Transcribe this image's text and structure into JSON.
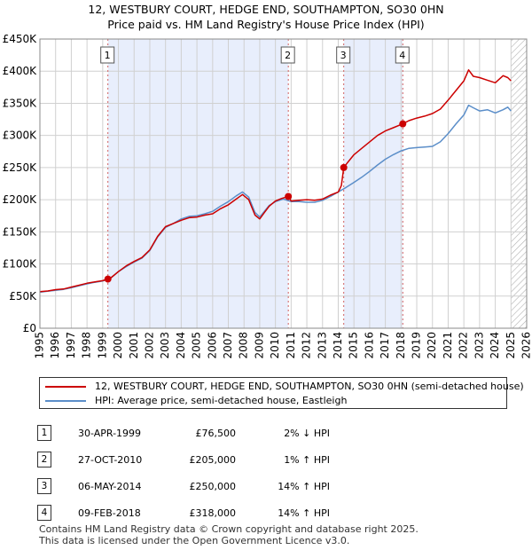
{
  "header": {
    "title": "12, WESTBURY COURT, HEDGE END, SOUTHAMPTON, SO30 0HN",
    "subtitle": "Price paid vs. HM Land Registry's House Price Index (HPI)"
  },
  "colors": {
    "property_line": "#cc0000",
    "hpi_line": "#5b8ec9",
    "shade": "#e8eefc",
    "grid": "#d0d0d0"
  },
  "chart_data": {
    "type": "line",
    "title": "Price paid vs. HM Land Registry's House Price Index (HPI)",
    "x_range": [
      1995,
      2026
    ],
    "ylim": [
      0,
      450000
    ],
    "y_ticks": [
      0,
      50000,
      100000,
      150000,
      200000,
      250000,
      300000,
      350000,
      400000,
      450000
    ],
    "y_tick_labels": [
      "£0",
      "£50K",
      "£100K",
      "£150K",
      "£200K",
      "£250K",
      "£300K",
      "£350K",
      "£400K",
      "£450K"
    ],
    "x_ticks": [
      1995,
      1996,
      1997,
      1998,
      1999,
      2000,
      2001,
      2002,
      2003,
      2004,
      2005,
      2006,
      2007,
      2008,
      2009,
      2010,
      2011,
      2012,
      2013,
      2014,
      2015,
      2016,
      2017,
      2018,
      2019,
      2020,
      2021,
      2022,
      2023,
      2024,
      2025,
      2026
    ],
    "x_tick_labels": [
      "1995",
      "1996",
      "1997",
      "1998",
      "1999",
      "2000",
      "2001",
      "2002",
      "2003",
      "2004",
      "2005",
      "2006",
      "2007",
      "2008",
      "2009",
      "2010",
      "2011",
      "2012",
      "2013",
      "2014",
      "2015",
      "2016",
      "2017",
      "2018",
      "2019",
      "2020",
      "2021",
      "2022",
      "2023",
      "2024",
      "2025",
      "2026"
    ],
    "grid": true,
    "shaded_spans": [
      [
        1999.33,
        2010.82
      ],
      [
        2014.35,
        2018.11
      ]
    ],
    "hatched_from": 2025.0,
    "series": [
      {
        "name": "12, WESTBURY COURT, HEDGE END, SOUTHAMPTON, SO30 0HN (semi-detached house)",
        "color": "#cc0000",
        "x": [
          1995.0,
          1995.5,
          1996.0,
          1996.5,
          1997.0,
          1997.5,
          1998.0,
          1998.5,
          1999.0,
          1999.33,
          1999.5,
          2000.0,
          2000.5,
          2001.0,
          2001.5,
          2002.0,
          2002.5,
          2003.0,
          2003.5,
          2004.0,
          2004.5,
          2005.0,
          2005.5,
          2006.0,
          2006.5,
          2007.0,
          2007.5,
          2007.9,
          2008.3,
          2008.7,
          2009.0,
          2009.3,
          2009.6,
          2010.0,
          2010.4,
          2010.82,
          2011.0,
          2011.5,
          2012.0,
          2012.5,
          2013.0,
          2013.5,
          2014.0,
          2014.2,
          2014.35,
          2014.6,
          2015.0,
          2015.5,
          2016.0,
          2016.5,
          2017.0,
          2017.5,
          2018.11,
          2018.5,
          2019.0,
          2019.5,
          2020.0,
          2020.5,
          2021.0,
          2021.5,
          2022.0,
          2022.3,
          2022.6,
          2023.0,
          2023.5,
          2024.0,
          2024.5,
          2024.8,
          2025.0
        ],
        "values": [
          57000,
          58000,
          60000,
          61000,
          64000,
          67000,
          70000,
          72000,
          74000,
          76500,
          78000,
          88000,
          97000,
          104000,
          110000,
          122000,
          143000,
          158000,
          163000,
          168000,
          172000,
          173000,
          176000,
          178000,
          186000,
          192000,
          201000,
          208000,
          200000,
          176000,
          170000,
          180000,
          190000,
          198000,
          202000,
          205000,
          198000,
          199000,
          200000,
          199000,
          201000,
          207000,
          212000,
          222000,
          250000,
          258000,
          270000,
          280000,
          290000,
          300000,
          307000,
          312000,
          318000,
          323000,
          327000,
          330000,
          334000,
          341000,
          355000,
          370000,
          385000,
          402000,
          392000,
          390000,
          386000,
          382000,
          393000,
          390000,
          385000
        ]
      },
      {
        "name": "HPI: Average price, semi-detached house, Eastleigh",
        "color": "#5b8ec9",
        "x": [
          1995.0,
          1995.5,
          1996.0,
          1996.5,
          1997.0,
          1997.5,
          1998.0,
          1998.5,
          1999.0,
          1999.5,
          2000.0,
          2000.5,
          2001.0,
          2001.5,
          2002.0,
          2002.5,
          2003.0,
          2003.5,
          2004.0,
          2004.5,
          2005.0,
          2005.5,
          2006.0,
          2006.5,
          2007.0,
          2007.5,
          2007.9,
          2008.3,
          2008.7,
          2009.0,
          2009.3,
          2009.6,
          2010.0,
          2010.5,
          2011.0,
          2011.5,
          2012.0,
          2012.5,
          2013.0,
          2013.5,
          2014.0,
          2014.5,
          2015.0,
          2015.5,
          2016.0,
          2016.5,
          2017.0,
          2017.5,
          2018.0,
          2018.5,
          2019.0,
          2019.5,
          2020.0,
          2020.5,
          2021.0,
          2021.5,
          2022.0,
          2022.3,
          2022.6,
          2023.0,
          2023.5,
          2024.0,
          2024.5,
          2024.8,
          2025.0
        ],
        "values": [
          56000,
          57500,
          59000,
          60500,
          63000,
          66000,
          69000,
          71500,
          73500,
          78000,
          88000,
          96000,
          103000,
          109000,
          121000,
          142000,
          157000,
          163000,
          170000,
          174000,
          175000,
          178000,
          182000,
          190000,
          197000,
          206000,
          212000,
          204000,
          180000,
          173000,
          182000,
          191000,
          197000,
          201000,
          197000,
          197000,
          196000,
          196000,
          199000,
          205000,
          212000,
          219000,
          227000,
          235000,
          244000,
          254000,
          263000,
          270000,
          276000,
          280000,
          281000,
          282000,
          283000,
          290000,
          303000,
          318000,
          332000,
          347000,
          343000,
          338000,
          340000,
          335000,
          340000,
          344000,
          338000
        ]
      }
    ],
    "transactions": [
      {
        "id": "1",
        "x": 1999.33,
        "value": 76500
      },
      {
        "id": "2",
        "x": 2010.82,
        "value": 205000
      },
      {
        "id": "3",
        "x": 2014.35,
        "value": 250000
      },
      {
        "id": "4",
        "x": 2018.11,
        "value": 318000
      }
    ]
  },
  "legend": {
    "items": [
      {
        "label": "12, WESTBURY COURT, HEDGE END, SOUTHAMPTON, SO30 0HN (semi-detached house)",
        "color": "#cc0000"
      },
      {
        "label": "HPI: Average price, semi-detached house, Eastleigh",
        "color": "#5b8ec9"
      }
    ]
  },
  "table": {
    "rows": [
      {
        "num": "1",
        "date": "30-APR-1999",
        "price": "£76,500",
        "hpi": "2% ↓ HPI"
      },
      {
        "num": "2",
        "date": "27-OCT-2010",
        "price": "£205,000",
        "hpi": "1% ↑ HPI"
      },
      {
        "num": "3",
        "date": "06-MAY-2014",
        "price": "£250,000",
        "hpi": "14% ↑ HPI"
      },
      {
        "num": "4",
        "date": "09-FEB-2018",
        "price": "£318,000",
        "hpi": "14% ↑ HPI"
      }
    ]
  },
  "footer": {
    "line1": "Contains HM Land Registry data © Crown copyright and database right 2025.",
    "line2": "This data is licensed under the Open Government Licence v3.0."
  }
}
